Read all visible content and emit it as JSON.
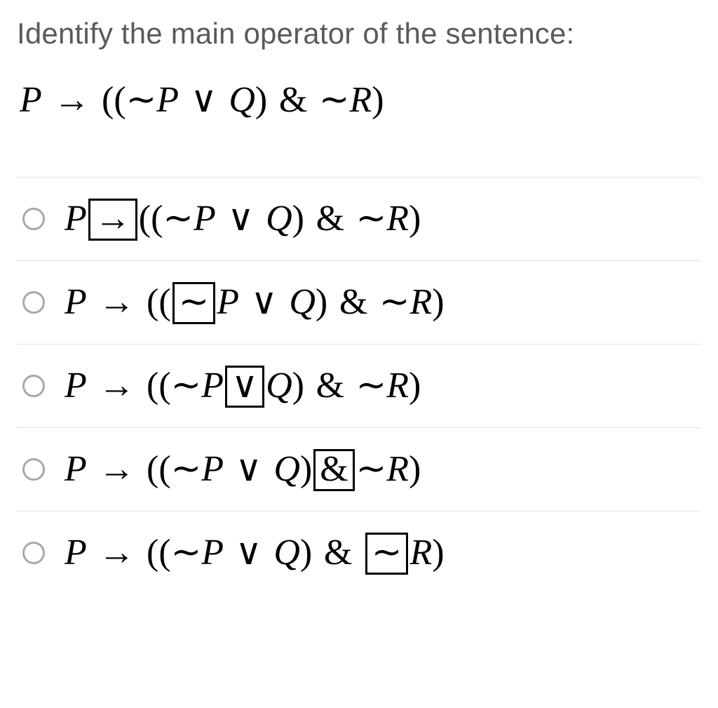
{
  "question": {
    "prompt": "Identify the main operator of the sentence:",
    "prompt_color": "#5a5a5a",
    "prompt_fontsize": 42,
    "formula_fontsize": 52,
    "formula_font": "Times New Roman",
    "background_color": "#ffffff",
    "divider_color": "#e4e4e4",
    "radio_border_color": "#a8a8a8",
    "box_border_color": "#000000",
    "P": "P",
    "Q": "Q",
    "R": "R",
    "arrow": "→",
    "not": "∼",
    "or": "∨",
    "and": "&",
    "lp": "(",
    "rp": ")",
    "llp": "((",
    "rrp": ")"
  }
}
